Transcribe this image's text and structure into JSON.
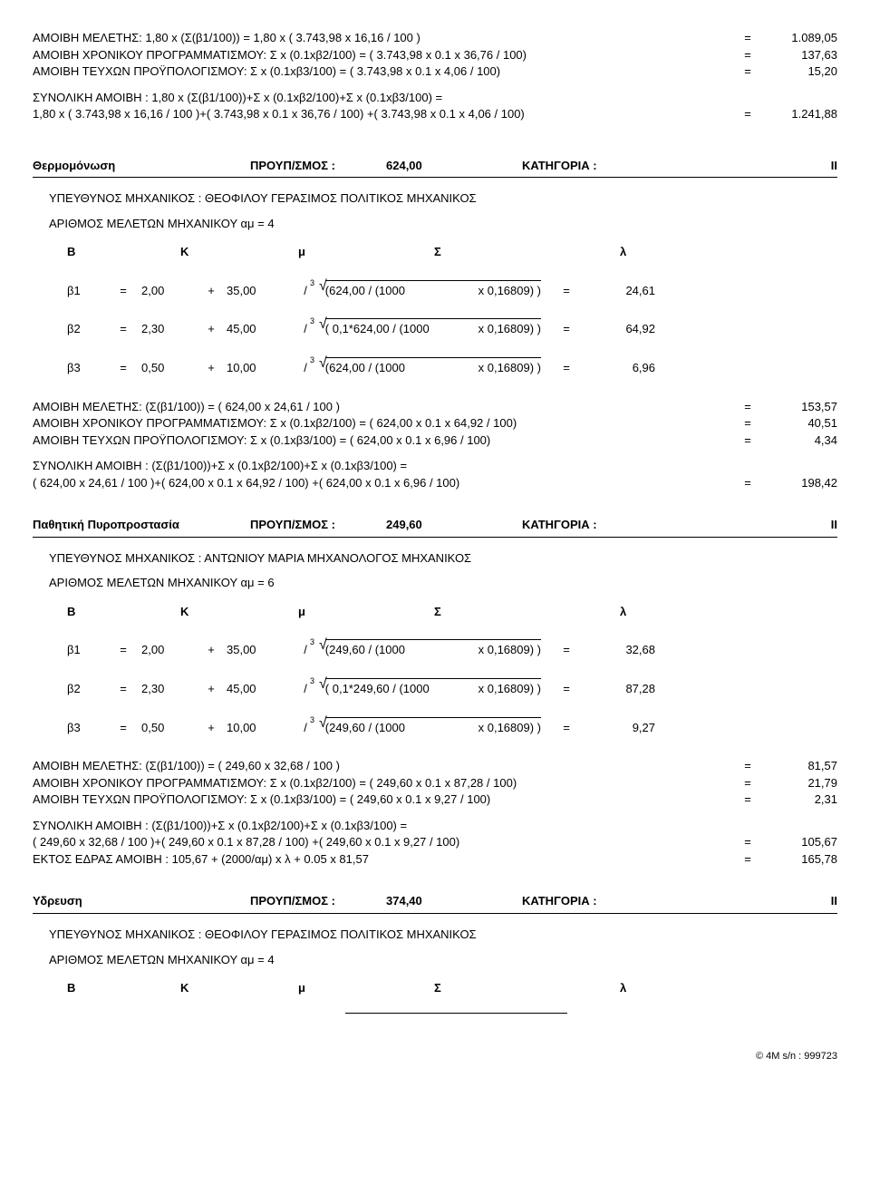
{
  "top": {
    "l1": {
      "text": "ΑΜΟΙΒΗ ΜΕΛΕΤΗΣ: 1,80 x (Σ(β1/100)) = 1,80 x ( 3.743,98 x 16,16 / 100 )",
      "val": "1.089,05"
    },
    "l2": {
      "text": "AMOIBH ΧΡΟΝΙΚΟΥ ΠΡΟΓΡΑΜΜΑΤΙΣΜΟΥ: Σ x (0.1xβ2/100) = ( 3.743,98 x 0.1 x 36,76 / 100)",
      "val": "137,63"
    },
    "l3": {
      "text": "ΑΜΟΙΒΗ ΤΕΥΧΩΝ ΠΡΟΫΠΟΛΟΓΙΣΜΟΥ: Σ x (0.1xβ3/100) = ( 3.743,98 x 0.1 x 4,06 / 100)",
      "val": "15,20"
    },
    "syn1": "ΣΥΝΟΛΙΚΗ ΑΜΟΙΒΗ : 1,80 x (Σ(β1/100))+Σ x (0.1xβ2/100)+Σ x (0.1xβ3/100) =",
    "syn2": {
      "text": "1,80 x ( 3.743,98 x 16,16 / 100 )+( 3.743,98 x 0.1 x 36,76 / 100) +( 3.743,98 x 0.1 x 4,06 / 100)",
      "val": "1.241,88"
    }
  },
  "hdr_labels": {
    "b": "Β",
    "k": "Κ",
    "mu": "μ",
    "s": "Σ",
    "l": "λ",
    "eq": "=",
    "plus": "+",
    "slash": "/",
    "sup3": "3",
    "rad": "√"
  },
  "sections": [
    {
      "title": "Θερμομόνωση",
      "proLab": "ΠΡΟΥΠ/ΣΜΟΣ :",
      "proVal": "624,00",
      "katLab": "ΚΑΤΗΓΟΡΙΑ :",
      "katVal": "II",
      "eng": "ΥΠΕΥΘΥΝΟΣ ΜΗΧΑΝΙΚΟΣ : ΘΕΟΦΙΛΟΥ ΓΕΡΑΣΙΜΟΣ  ΠΟΛΙΤΙΚΟΣ ΜΗΧΑΝΙΚΟΣ",
      "am": "ΑΡΙΘΜΟΣ ΜΕΛΕΤΩΝ ΜΗΧΑΝΙΚΟΥ αμ = 4",
      "betas": [
        {
          "n": "β1",
          "B": "2,00",
          "K": "35,00",
          "exprL": "(624,00 / (1000",
          "exprR": "x 0,16809) )",
          "res": "24,61"
        },
        {
          "n": "β2",
          "B": "2,30",
          "K": "45,00",
          "exprL": "( 0,1*624,00 / (1000",
          "exprR": "x 0,16809) )",
          "res": "64,92"
        },
        {
          "n": "β3",
          "B": "0,50",
          "K": "10,00",
          "exprL": "(624,00 / (1000",
          "exprR": "x 0,16809) )",
          "res": "6,96"
        }
      ],
      "fees": {
        "l1": {
          "text": "ΑΜΟΙΒΗ ΜΕΛΕΤΗΣ: (Σ(β1/100)) = ( 624,00 x 24,61 / 100 )",
          "val": "153,57"
        },
        "l2": {
          "text": "AMOIBH ΧΡΟΝΙΚΟΥ ΠΡΟΓΡΑΜΜΑΤΙΣΜΟΥ: Σ x (0.1xβ2/100) = ( 624,00 x 0.1 x 64,92 / 100)",
          "val": "40,51"
        },
        "l3": {
          "text": "ΑΜΟΙΒΗ ΤΕΥΧΩΝ ΠΡΟΫΠΟΛΟΓΙΣΜΟΥ: Σ x (0.1xβ3/100) = ( 624,00 x 0.1 x 6,96 / 100)",
          "val": "4,34"
        },
        "syn1": "ΣΥΝΟΛΙΚΗ ΑΜΟΙΒΗ : (Σ(β1/100))+Σ x (0.1xβ2/100)+Σ x (0.1xβ3/100) =",
        "syn2": {
          "text": "( 624,00 x 24,61 / 100 )+( 624,00 x 0.1 x 64,92 / 100) +( 624,00 x 0.1 x 6,96 / 100)",
          "val": "198,42"
        }
      }
    },
    {
      "title": "Παθητική Πυροπροστασία",
      "proLab": "ΠΡΟΥΠ/ΣΜΟΣ :",
      "proVal": "249,60",
      "katLab": "ΚΑΤΗΓΟΡΙΑ :",
      "katVal": "II",
      "eng": "ΥΠΕΥΘΥΝΟΣ ΜΗΧΑΝΙΚΟΣ : ΑΝΤΩΝΙΟΥ ΜΑΡΙΑ  ΜΗΧΑΝΟΛΟΓΟΣ ΜΗΧΑΝΙΚΟΣ",
      "am": "ΑΡΙΘΜΟΣ ΜΕΛΕΤΩΝ ΜΗΧΑΝΙΚΟΥ αμ = 6",
      "betas": [
        {
          "n": "β1",
          "B": "2,00",
          "K": "35,00",
          "exprL": "(249,60 / (1000",
          "exprR": "x 0,16809) )",
          "res": "32,68"
        },
        {
          "n": "β2",
          "B": "2,30",
          "K": "45,00",
          "exprL": "( 0,1*249,60 / (1000",
          "exprR": "x 0,16809) )",
          "res": "87,28"
        },
        {
          "n": "β3",
          "B": "0,50",
          "K": "10,00",
          "exprL": "(249,60 / (1000",
          "exprR": "x 0,16809) )",
          "res": "9,27"
        }
      ],
      "fees": {
        "l1": {
          "text": "ΑΜΟΙΒΗ ΜΕΛΕΤΗΣ: (Σ(β1/100)) = ( 249,60 x 32,68 / 100 )",
          "val": "81,57"
        },
        "l2": {
          "text": "AMOIBH ΧΡΟΝΙΚΟΥ ΠΡΟΓΡΑΜΜΑΤΙΣΜΟΥ: Σ x (0.1xβ2/100) = ( 249,60 x 0.1 x 87,28 / 100)",
          "val": "21,79"
        },
        "l3": {
          "text": "ΑΜΟΙΒΗ ΤΕΥΧΩΝ ΠΡΟΫΠΟΛΟΓΙΣΜΟΥ: Σ x (0.1xβ3/100) = ( 249,60 x 0.1 x 9,27 / 100)",
          "val": "2,31"
        },
        "syn1": "ΣΥΝΟΛΙΚΗ ΑΜΟΙΒΗ : (Σ(β1/100))+Σ x (0.1xβ2/100)+Σ x (0.1xβ3/100) =",
        "syn2": {
          "text": "( 249,60 x 32,68 / 100 )+( 249,60 x 0.1 x 87,28 / 100) +( 249,60 x 0.1 x 9,27 / 100)",
          "val": "105,67"
        },
        "extra": {
          "text": "ΕΚΤΟΣ ΕΔΡΑΣ ΑΜΟΙΒΗ : 105,67 + (2000/αμ) x λ + 0.05 x 81,57",
          "val": "165,78"
        }
      }
    },
    {
      "title": "Υδρευση",
      "proLab": "ΠΡΟΥΠ/ΣΜΟΣ :",
      "proVal": "374,40",
      "katLab": "ΚΑΤΗΓΟΡΙΑ :",
      "katVal": "II",
      "eng": "ΥΠΕΥΘΥΝΟΣ ΜΗΧΑΝΙΚΟΣ : ΘΕΟΦΙΛΟΥ ΓΕΡΑΣΙΜΟΣ  ΠΟΛΙΤΙΚΟΣ ΜΗΧΑΝΙΚΟΣ",
      "am": "ΑΡΙΘΜΟΣ ΜΕΛΕΤΩΝ ΜΗΧΑΝΙΚΟΥ αμ = 4"
    }
  ],
  "footer": "© 4M  s/n :    999723"
}
